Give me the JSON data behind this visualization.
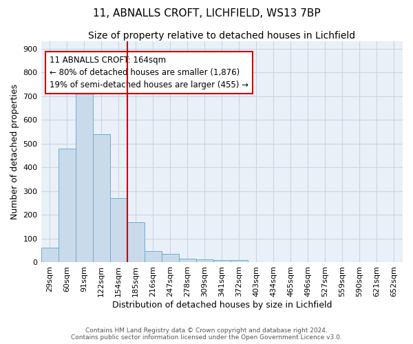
{
  "title": "11, ABNALLS CROFT, LICHFIELD, WS13 7BP",
  "subtitle": "Size of property relative to detached houses in Lichfield",
  "xlabel": "Distribution of detached houses by size in Lichfield",
  "ylabel": "Number of detached properties",
  "categories": [
    "29sqm",
    "60sqm",
    "91sqm",
    "122sqm",
    "154sqm",
    "185sqm",
    "216sqm",
    "247sqm",
    "278sqm",
    "309sqm",
    "341sqm",
    "372sqm",
    "403sqm",
    "434sqm",
    "465sqm",
    "496sqm",
    "527sqm",
    "559sqm",
    "590sqm",
    "621sqm",
    "652sqm"
  ],
  "values": [
    62,
    480,
    722,
    541,
    270,
    168,
    48,
    35,
    17,
    13,
    10,
    10,
    0,
    0,
    0,
    0,
    0,
    0,
    0,
    0,
    0
  ],
  "bar_color": "#c9daea",
  "bar_edge_color": "#6baed6",
  "red_line_x": 4.5,
  "red_line_color": "#cc0000",
  "annotation_line1": "11 ABNALLS CROFT: 164sqm",
  "annotation_line2": "← 80% of detached houses are smaller (1,876)",
  "annotation_line3": "19% of semi-detached houses are larger (455) →",
  "annotation_box_color": "#cc0000",
  "ylim": [
    0,
    930
  ],
  "yticks": [
    0,
    100,
    200,
    300,
    400,
    500,
    600,
    700,
    800,
    900
  ],
  "grid_color": "#c8d4e4",
  "bg_color": "#eaf0f8",
  "footer_line1": "Contains HM Land Registry data © Crown copyright and database right 2024.",
  "footer_line2": "Contains public sector information licensed under the Open Government Licence v3.0.",
  "title_fontsize": 11,
  "subtitle_fontsize": 10,
  "xlabel_fontsize": 9,
  "ylabel_fontsize": 9,
  "tick_fontsize": 8,
  "annot_fontsize": 8.5
}
